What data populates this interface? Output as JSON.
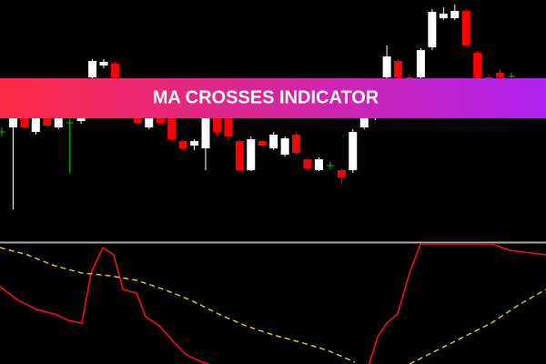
{
  "chart_data": [
    {
      "type": "candlestick",
      "title": "MA CROSSES INDICATOR",
      "ylim": [
        0,
        270
      ],
      "up_color": "#ffffff",
      "down_color": "#ff0000",
      "doji_color": "#00c000",
      "open": [
        125,
        130,
        140,
        125,
        140,
        130,
        135,
        137,
        185,
        198,
        200,
        180,
        140,
        130,
        140,
        140,
        115,
        110,
        107,
        145,
        140,
        115,
        83,
        115,
        107,
        100,
        122,
        95,
        83,
        88,
        83,
        83,
        130,
        140,
        185,
        203,
        185,
        185,
        218,
        250,
        250,
        258,
        212,
        185,
        190,
        186
      ],
      "high": [
        130,
        145,
        142,
        142,
        142,
        142,
        142,
        142,
        205,
        205,
        202,
        182,
        142,
        142,
        142,
        142,
        117,
        117,
        142,
        148,
        142,
        117,
        120,
        117,
        125,
        120,
        125,
        97,
        97,
        92,
        85,
        128,
        142,
        162,
        220,
        205,
        188,
        217,
        260,
        262,
        265,
        260,
        215,
        188,
        193,
        190
      ],
      "low": [
        120,
        40,
        128,
        122,
        130,
        128,
        80,
        134,
        183,
        195,
        183,
        145,
        133,
        128,
        133,
        115,
        105,
        105,
        83,
        120,
        115,
        82,
        82,
        108,
        105,
        98,
        100,
        82,
        82,
        84,
        67,
        80,
        128,
        138,
        183,
        183,
        170,
        183,
        215,
        248,
        248,
        218,
        183,
        168,
        183,
        182
      ],
      "close": [
        125,
        140,
        130,
        140,
        132,
        140,
        135,
        140,
        203,
        202,
        185,
        150,
        135,
        140,
        135,
        117,
        107,
        115,
        140,
        125,
        120,
        83,
        117,
        110,
        122,
        118,
        102,
        85,
        95,
        88,
        75,
        125,
        140,
        160,
        208,
        185,
        175,
        215,
        257,
        255,
        258,
        220,
        185,
        170,
        185,
        186
      ]
    },
    {
      "type": "line",
      "xlim": [
        0,
        600
      ],
      "ylim": [
        0,
        132
      ],
      "series": [
        {
          "color": "#ff1010",
          "dashed": false,
          "x": [
            0,
            20,
            40,
            60,
            75,
            90,
            100,
            113,
            125,
            135,
            150,
            160,
            175,
            190,
            205,
            220,
            235,
            320,
            405,
            415,
            425,
            437,
            450,
            462,
            540,
            560,
            600
          ],
          "values": [
            85,
            70,
            60,
            55,
            48,
            45,
            100,
            128,
            120,
            82,
            78,
            52,
            42,
            25,
            10,
            3,
            -2,
            null,
            -2,
            30,
            45,
            55,
            100,
            132,
            132,
            125,
            120
          ]
        },
        {
          "color": "#d8c020",
          "dashed": true,
          "x": [
            0,
            30,
            60,
            90,
            120,
            150,
            180,
            210,
            240,
            270,
            300,
            330,
            360,
            390,
            420,
            450,
            480,
            510,
            540,
            570,
            600
          ],
          "values": [
            128,
            120,
            108,
            100,
            97,
            92,
            82,
            70,
            55,
            42,
            32,
            24,
            15,
            2,
            null,
            0,
            15,
            30,
            45,
            65,
            82
          ]
        }
      ]
    }
  ]
}
